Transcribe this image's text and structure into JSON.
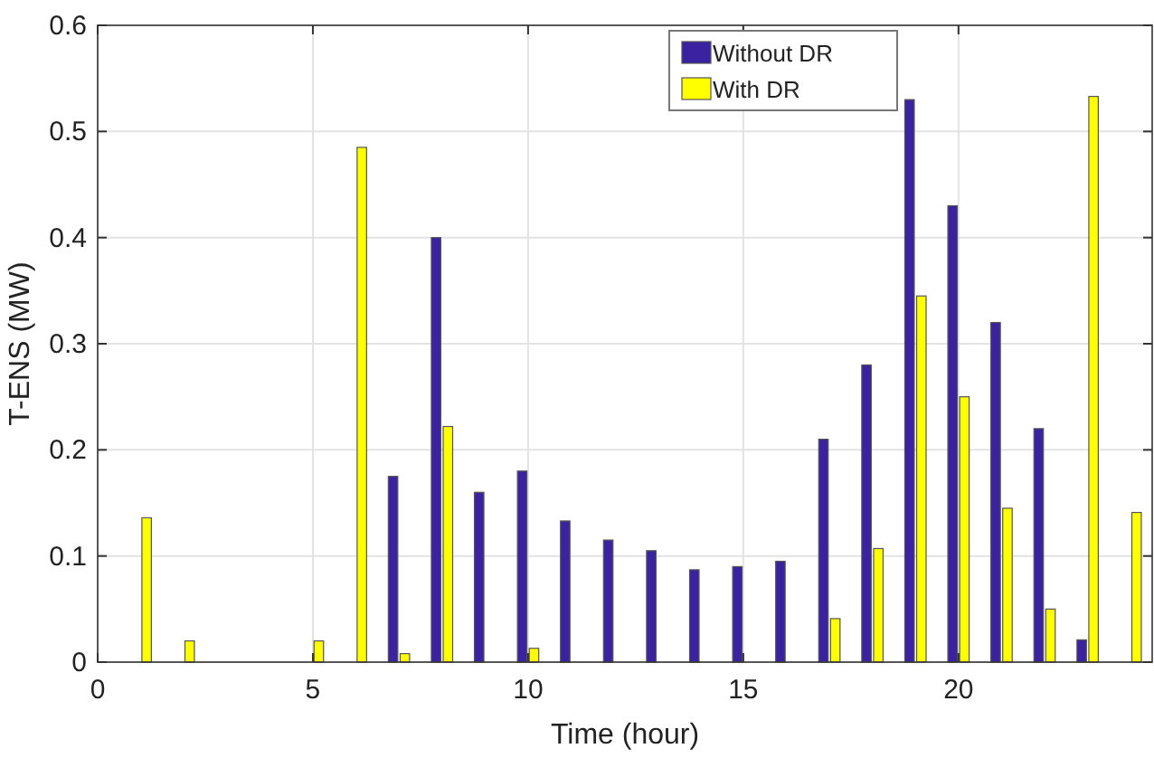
{
  "chart_data": {
    "type": "bar",
    "xlabel": "Time (hour)",
    "ylabel": "T-ENS (MW)",
    "x": [
      1,
      2,
      3,
      4,
      5,
      6,
      7,
      8,
      9,
      10,
      11,
      12,
      13,
      14,
      15,
      16,
      17,
      18,
      19,
      20,
      21,
      22,
      23,
      24
    ],
    "series": [
      {
        "name": "Without DR",
        "color": "#3a22a0",
        "values": [
          0,
          0,
          0,
          0,
          0,
          0,
          0.175,
          0.4,
          0.16,
          0.18,
          0.133,
          0.115,
          0.105,
          0.087,
          0.09,
          0.095,
          0.21,
          0.28,
          0.53,
          0.43,
          0.32,
          0.22,
          0.021,
          0
        ]
      },
      {
        "name": "With DR",
        "color": "#ffff00",
        "values": [
          0.136,
          0.02,
          0,
          0,
          0.02,
          0.485,
          0.008,
          0.222,
          0,
          0.013,
          0,
          0,
          0,
          0,
          0,
          0,
          0.041,
          0.107,
          0.345,
          0.25,
          0.145,
          0.05,
          0.533,
          0.141
        ]
      }
    ],
    "xlim": [
      0,
      24.5
    ],
    "xticks": [
      0,
      5,
      10,
      15,
      20
    ],
    "ylim": [
      0,
      0.6
    ],
    "yticks": [
      0,
      0.1,
      0.2,
      0.3,
      0.4,
      0.5,
      0.6
    ],
    "grid": true,
    "legend": "top right"
  }
}
